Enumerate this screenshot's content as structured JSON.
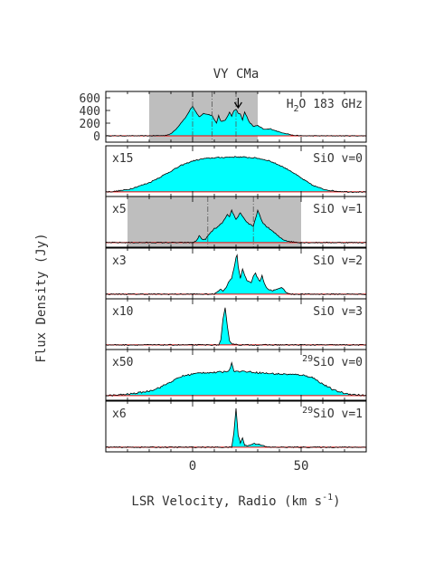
{
  "chart_data": {
    "type": "area",
    "title": "VY CMa",
    "xlabel": "LSR Velocity, Radio (km s",
    "xlabel_sup": "-1",
    "xlabel_close": ")",
    "ylabel": "Flux Density (Jy)",
    "xlim": [
      -40,
      80
    ],
    "x_ticks": [
      0,
      50
    ],
    "fill_color": "#00ffff",
    "line_color": "#000000",
    "baseline_color": "#ff0000",
    "shade_color": "#bebebe",
    "panels": [
      {
        "label": "H",
        "label_sub": "2",
        "label_rest": "O 183 GHz",
        "scale": "",
        "ylim": [
          -100,
          700
        ],
        "y_ticks": [
          0,
          200,
          400,
          600
        ],
        "shade": [
          -20,
          30
        ],
        "markers": [
          0,
          9,
          20
        ],
        "arrow_x": 21,
        "noise": 6,
        "x": [
          -40,
          -20,
          -13,
          -10,
          -7,
          -5,
          -3,
          -1,
          0,
          1,
          3,
          5,
          7,
          9,
          11,
          12,
          13,
          15,
          17,
          18,
          19,
          20,
          21,
          22,
          23,
          24,
          26,
          28,
          30,
          33,
          36,
          40,
          44,
          46,
          50,
          80
        ],
        "y": [
          0,
          0,
          5,
          30,
          130,
          220,
          300,
          420,
          470,
          400,
          300,
          350,
          340,
          320,
          200,
          320,
          230,
          240,
          370,
          310,
          400,
          420,
          360,
          340,
          250,
          380,
          220,
          150,
          160,
          100,
          110,
          60,
          30,
          10,
          0,
          0
        ]
      },
      {
        "label": "SiO v=0",
        "scale": "x15",
        "ylim": [
          -10,
          100
        ],
        "noise": 1.2,
        "x": [
          -40,
          -36,
          -30,
          -25,
          -20,
          -15,
          -10,
          -5,
          0,
          5,
          10,
          15,
          20,
          25,
          30,
          35,
          40,
          45,
          50,
          55,
          60,
          65,
          72,
          80
        ],
        "y": [
          0,
          1,
          5,
          12,
          20,
          32,
          45,
          58,
          67,
          72,
          74,
          75,
          76,
          75,
          73,
          68,
          58,
          46,
          30,
          15,
          6,
          2,
          0,
          0
        ]
      },
      {
        "label": "SiO v=1",
        "scale": "x5",
        "ylim": [
          -10,
          100
        ],
        "shade": [
          -30,
          50
        ],
        "markers": [
          7,
          28
        ],
        "noise": 1.2,
        "x": [
          -40,
          0,
          1,
          2,
          3,
          4,
          5,
          6,
          8,
          10,
          12,
          14,
          16,
          17,
          18,
          19,
          20,
          22,
          24,
          26,
          28,
          30,
          32,
          34,
          36,
          38,
          40,
          42,
          45,
          50,
          80
        ],
        "y": [
          0,
          0,
          2,
          5,
          15,
          10,
          5,
          8,
          20,
          30,
          35,
          45,
          60,
          55,
          70,
          60,
          50,
          65,
          50,
          40,
          35,
          70,
          45,
          35,
          28,
          20,
          12,
          6,
          2,
          0,
          0
        ]
      },
      {
        "label": "SiO v=2",
        "scale": "x3",
        "ylim": [
          -10,
          100
        ],
        "noise": 1.2,
        "x": [
          -40,
          10,
          12,
          13,
          14,
          15,
          16,
          17,
          18,
          19,
          20,
          20.5,
          21,
          22,
          23,
          24,
          25,
          27,
          28,
          29,
          30,
          31,
          32,
          33,
          34,
          35,
          37,
          40,
          41,
          42,
          43,
          45,
          80
        ],
        "y": [
          0,
          0,
          8,
          12,
          6,
          12,
          20,
          30,
          35,
          55,
          80,
          85,
          60,
          35,
          55,
          40,
          30,
          25,
          40,
          45,
          35,
          28,
          40,
          25,
          15,
          10,
          8,
          12,
          15,
          10,
          5,
          0,
          0
        ]
      },
      {
        "label": "SiO v=3",
        "scale": "x10",
        "ylim": [
          -10,
          100
        ],
        "noise": 1.2,
        "x": [
          -40,
          12,
          13,
          14,
          15,
          16,
          17,
          18,
          20,
          22,
          80
        ],
        "y": [
          0,
          0,
          10,
          55,
          80,
          40,
          10,
          3,
          1,
          0,
          0
        ]
      },
      {
        "label": "SiO v=0",
        "label_sup": "29",
        "scale": "x50",
        "ylim": [
          -10,
          100
        ],
        "noise": 1.8,
        "x": [
          -40,
          -35,
          -30,
          -25,
          -20,
          -15,
          -10,
          -5,
          0,
          5,
          10,
          15,
          17,
          18,
          19,
          20,
          22,
          25,
          30,
          35,
          40,
          45,
          50,
          55,
          60,
          65,
          70,
          75,
          80
        ],
        "y": [
          0,
          1,
          3,
          6,
          10,
          18,
          30,
          42,
          47,
          50,
          50,
          52,
          55,
          72,
          55,
          52,
          53,
          52,
          50,
          48,
          47,
          46,
          45,
          40,
          25,
          12,
          5,
          2,
          0
        ]
      },
      {
        "label": "SiO v=1",
        "label_sup": "29",
        "scale": "x6",
        "ylim": [
          -10,
          100
        ],
        "noise": 1.2,
        "x": [
          -40,
          18,
          19,
          20,
          21,
          22,
          23,
          24,
          25,
          26,
          27,
          28,
          30,
          32,
          33,
          35,
          80
        ],
        "y": [
          0,
          0,
          30,
          85,
          25,
          10,
          20,
          5,
          3,
          4,
          6,
          8,
          7,
          5,
          2,
          0,
          0
        ]
      }
    ]
  }
}
